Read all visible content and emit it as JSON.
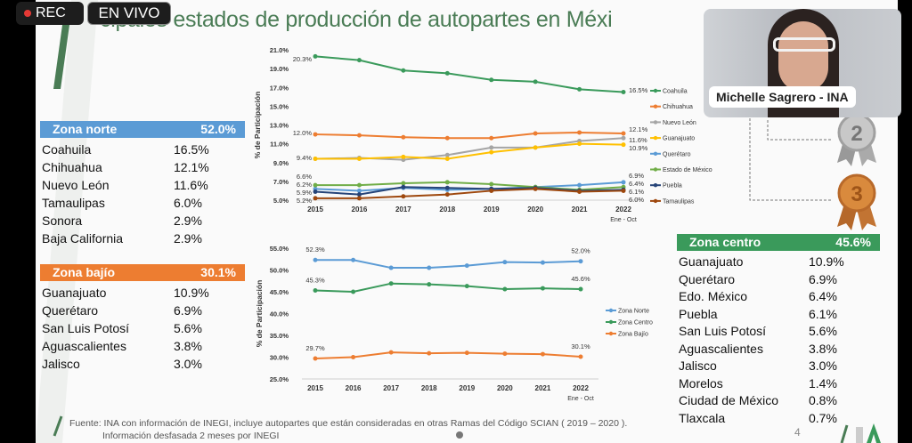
{
  "overlay": {
    "rec_label": "REC",
    "live_label": "EN VIVO",
    "participant_name": "Michelle Sagrero - INA"
  },
  "slide": {
    "title": "cipales estados de producción de autopartes en Méxi",
    "page_number": "4",
    "footer_line1": "Fuente: INA con información de INEGI, incluye autopartes que están consideradas en otras Ramas del Código SCIAN ( 2019 – 2020 ).",
    "footer_line2": "Información desfasada 2 meses por INEGI",
    "medals": [
      "2",
      "3"
    ]
  },
  "tables": {
    "norte": {
      "label": "Zona norte",
      "value": "52.0%",
      "color": "#5b9bd5",
      "rows": [
        [
          "Coahuila",
          "16.5%"
        ],
        [
          "Chihuahua",
          "12.1%"
        ],
        [
          "Nuevo León",
          "11.6%"
        ],
        [
          "Tamaulipas",
          "6.0%"
        ],
        [
          "Sonora",
          "2.9%"
        ],
        [
          "Baja California",
          "2.9%"
        ]
      ]
    },
    "bajio": {
      "label": "Zona bajío",
      "value": "30.1%",
      "color": "#ed7d31",
      "rows": [
        [
          "Guanajuato",
          "10.9%"
        ],
        [
          "Querétaro",
          "6.9%"
        ],
        [
          "San Luis Potosí",
          "5.6%"
        ],
        [
          "Aguascalientes",
          "3.8%"
        ],
        [
          "Jalisco",
          "3.0%"
        ]
      ]
    },
    "centro": {
      "label": "Zona  centro",
      "value": "45.6%",
      "color": "#3a9a5b",
      "rows": [
        [
          "Guanajuato",
          "10.9%"
        ],
        [
          "Querétaro",
          "6.9%"
        ],
        [
          "Edo. México",
          "6.4%"
        ],
        [
          "Puebla",
          "6.1%"
        ],
        [
          "San Luis Potosí",
          "5.6%"
        ],
        [
          "Aguascalientes",
          "3.8%"
        ],
        [
          "Jalisco",
          "3.0%"
        ],
        [
          "Morelos",
          "1.4%"
        ],
        [
          "Ciudad de México",
          "0.8%"
        ],
        [
          "Tlaxcala",
          "0.7%"
        ]
      ]
    }
  },
  "chart_data": [
    {
      "type": "line",
      "ylabel": "% de Participación",
      "ylim": [
        5,
        21
      ],
      "yticks": [
        "5.0%",
        "7.0%",
        "9.0%",
        "11.0%",
        "13.0%",
        "15.0%",
        "17.0%",
        "19.0%",
        "21.0%"
      ],
      "categories": [
        "2015",
        "2016",
        "2017",
        "2018",
        "2019",
        "2020",
        "2021",
        "2022"
      ],
      "last_sublabel": "Ene - Oct",
      "legend": "right",
      "grid": false,
      "series": [
        {
          "name": "Coahuila",
          "color": "#3a9a5b",
          "values": [
            20.3,
            19.9,
            18.8,
            18.5,
            17.8,
            17.6,
            16.8,
            16.5
          ],
          "start_label": "20.3%",
          "end_label": "16.5%"
        },
        {
          "name": "Chihuahua",
          "color": "#ed7d31",
          "values": [
            12.0,
            11.9,
            11.7,
            11.6,
            11.6,
            12.1,
            12.2,
            12.1
          ],
          "start_label": "12.0%",
          "end_label": "12.1%"
        },
        {
          "name": "Nuevo León",
          "color": "#a5a5a5",
          "values": [
            9.4,
            9.5,
            9.3,
            9.8,
            10.6,
            10.6,
            11.3,
            11.6
          ],
          "start_label": "",
          "end_label": "11.6%"
        },
        {
          "name": "Guanajuato",
          "color": "#ffc000",
          "values": [
            9.4,
            9.4,
            9.6,
            9.4,
            10.1,
            10.6,
            11.0,
            10.9
          ],
          "start_label": "9.4%",
          "end_label": "10.9%"
        },
        {
          "name": "Querétaro",
          "color": "#5b9bd5",
          "values": [
            6.2,
            6.0,
            6.3,
            6.1,
            6.2,
            6.4,
            6.6,
            6.9
          ],
          "start_label": "6.2%",
          "end_label": "6.9%"
        },
        {
          "name": "Estado de México",
          "color": "#70ad47",
          "values": [
            6.6,
            6.6,
            6.8,
            6.9,
            6.7,
            6.4,
            6.1,
            6.4
          ],
          "start_label": "6.6%",
          "end_label": "6.4%"
        },
        {
          "name": "Puebla",
          "color": "#264478",
          "values": [
            5.9,
            5.6,
            6.4,
            6.3,
            6.2,
            6.3,
            6.0,
            6.1
          ],
          "start_label": "5.9%",
          "end_label": "6.1%"
        },
        {
          "name": "Tamaulipas",
          "color": "#9e480e",
          "values": [
            5.2,
            5.2,
            5.4,
            5.6,
            6.0,
            6.2,
            5.9,
            6.0
          ],
          "start_label": "5.2%",
          "end_label": "6.0%"
        }
      ]
    },
    {
      "type": "line",
      "ylabel": "% de Participación",
      "ylim": [
        25,
        55
      ],
      "yticks": [
        "25.0%",
        "30.0%",
        "35.0%",
        "40.0%",
        "45.0%",
        "50.0%",
        "55.0%"
      ],
      "categories": [
        "2015",
        "2016",
        "2017",
        "2018",
        "2019",
        "2020",
        "2021",
        "2022"
      ],
      "last_sublabel": "Ene - Oct",
      "legend": "right",
      "grid": false,
      "series": [
        {
          "name": "Zona Norte",
          "color": "#5b9bd5",
          "values": [
            52.3,
            52.3,
            50.5,
            50.5,
            51.0,
            51.8,
            51.7,
            52.0
          ],
          "start_label": "52.3%",
          "end_label": "52.0%"
        },
        {
          "name": "Zona Centro",
          "color": "#3a9a5b",
          "values": [
            45.3,
            45.0,
            46.9,
            46.7,
            46.3,
            45.6,
            45.8,
            45.6
          ],
          "start_label": "45.3%",
          "end_label": "45.6%"
        },
        {
          "name": "Zona Bajío",
          "color": "#ed7d31",
          "values": [
            29.7,
            30.0,
            31.1,
            30.9,
            31.0,
            30.8,
            30.7,
            30.1
          ],
          "start_label": "29.7%",
          "end_label": "30.1%"
        }
      ]
    }
  ]
}
